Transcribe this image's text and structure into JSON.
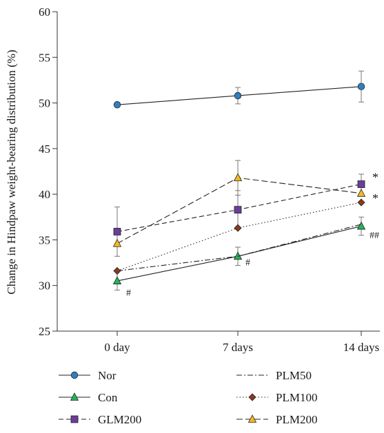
{
  "chart_data": {
    "type": "line",
    "ylabel": "Change in Hindpaw weight-bearing distribution (%)",
    "xlabel": "",
    "categories": [
      "0 day",
      "7 days",
      "14 days"
    ],
    "ylim": [
      25,
      60
    ],
    "yticks": [
      25,
      30,
      35,
      40,
      45,
      50,
      55,
      60
    ],
    "legend_position": "bottom",
    "series": [
      {
        "name": "Nor",
        "values": [
          49.8,
          50.8,
          51.8
        ],
        "errors": [
          null,
          0.9,
          1.7
        ],
        "marker": "circle",
        "marker_color": "#2e7fc1",
        "dash": "solid"
      },
      {
        "name": "Con",
        "values": [
          30.5,
          33.2,
          36.5
        ],
        "errors": [
          1.0,
          1.0,
          1.0
        ],
        "marker": "triangle",
        "marker_color": "#22b55a",
        "dash": "solid"
      },
      {
        "name": "GLM200",
        "values": [
          35.9,
          38.3,
          41.1
        ],
        "errors": [
          2.7,
          2.1,
          1.1
        ],
        "marker": "square",
        "marker_color": "#6a3d9a",
        "dash": "dashed"
      },
      {
        "name": "PLM50",
        "values": [
          31.6,
          33.2,
          36.7
        ],
        "errors": [
          null,
          null,
          null
        ],
        "marker": "none",
        "marker_color": "#333333",
        "dash": "dashdot"
      },
      {
        "name": "PLM100",
        "values": [
          31.6,
          36.3,
          39.1
        ],
        "errors": [
          null,
          null,
          null
        ],
        "marker": "diamond",
        "marker_color": "#8b3a1e",
        "dash": "dotted"
      },
      {
        "name": "PLM200",
        "values": [
          34.6,
          41.8,
          40.1
        ],
        "errors": [
          null,
          1.9,
          null
        ],
        "marker": "triangle",
        "marker_color": "#f5b820",
        "dash": "longdash"
      }
    ],
    "annotations": [
      {
        "text": "#",
        "category_index": 0,
        "y": 29.2
      },
      {
        "text": "#",
        "category_index": 1,
        "y": 32.5
      },
      {
        "text": "##",
        "category_index": 2,
        "y": 35.5
      },
      {
        "text": "*",
        "category_index": 2,
        "y": 42.0
      },
      {
        "text": "*",
        "category_index": 2,
        "y": 39.7
      }
    ],
    "grid": false
  }
}
